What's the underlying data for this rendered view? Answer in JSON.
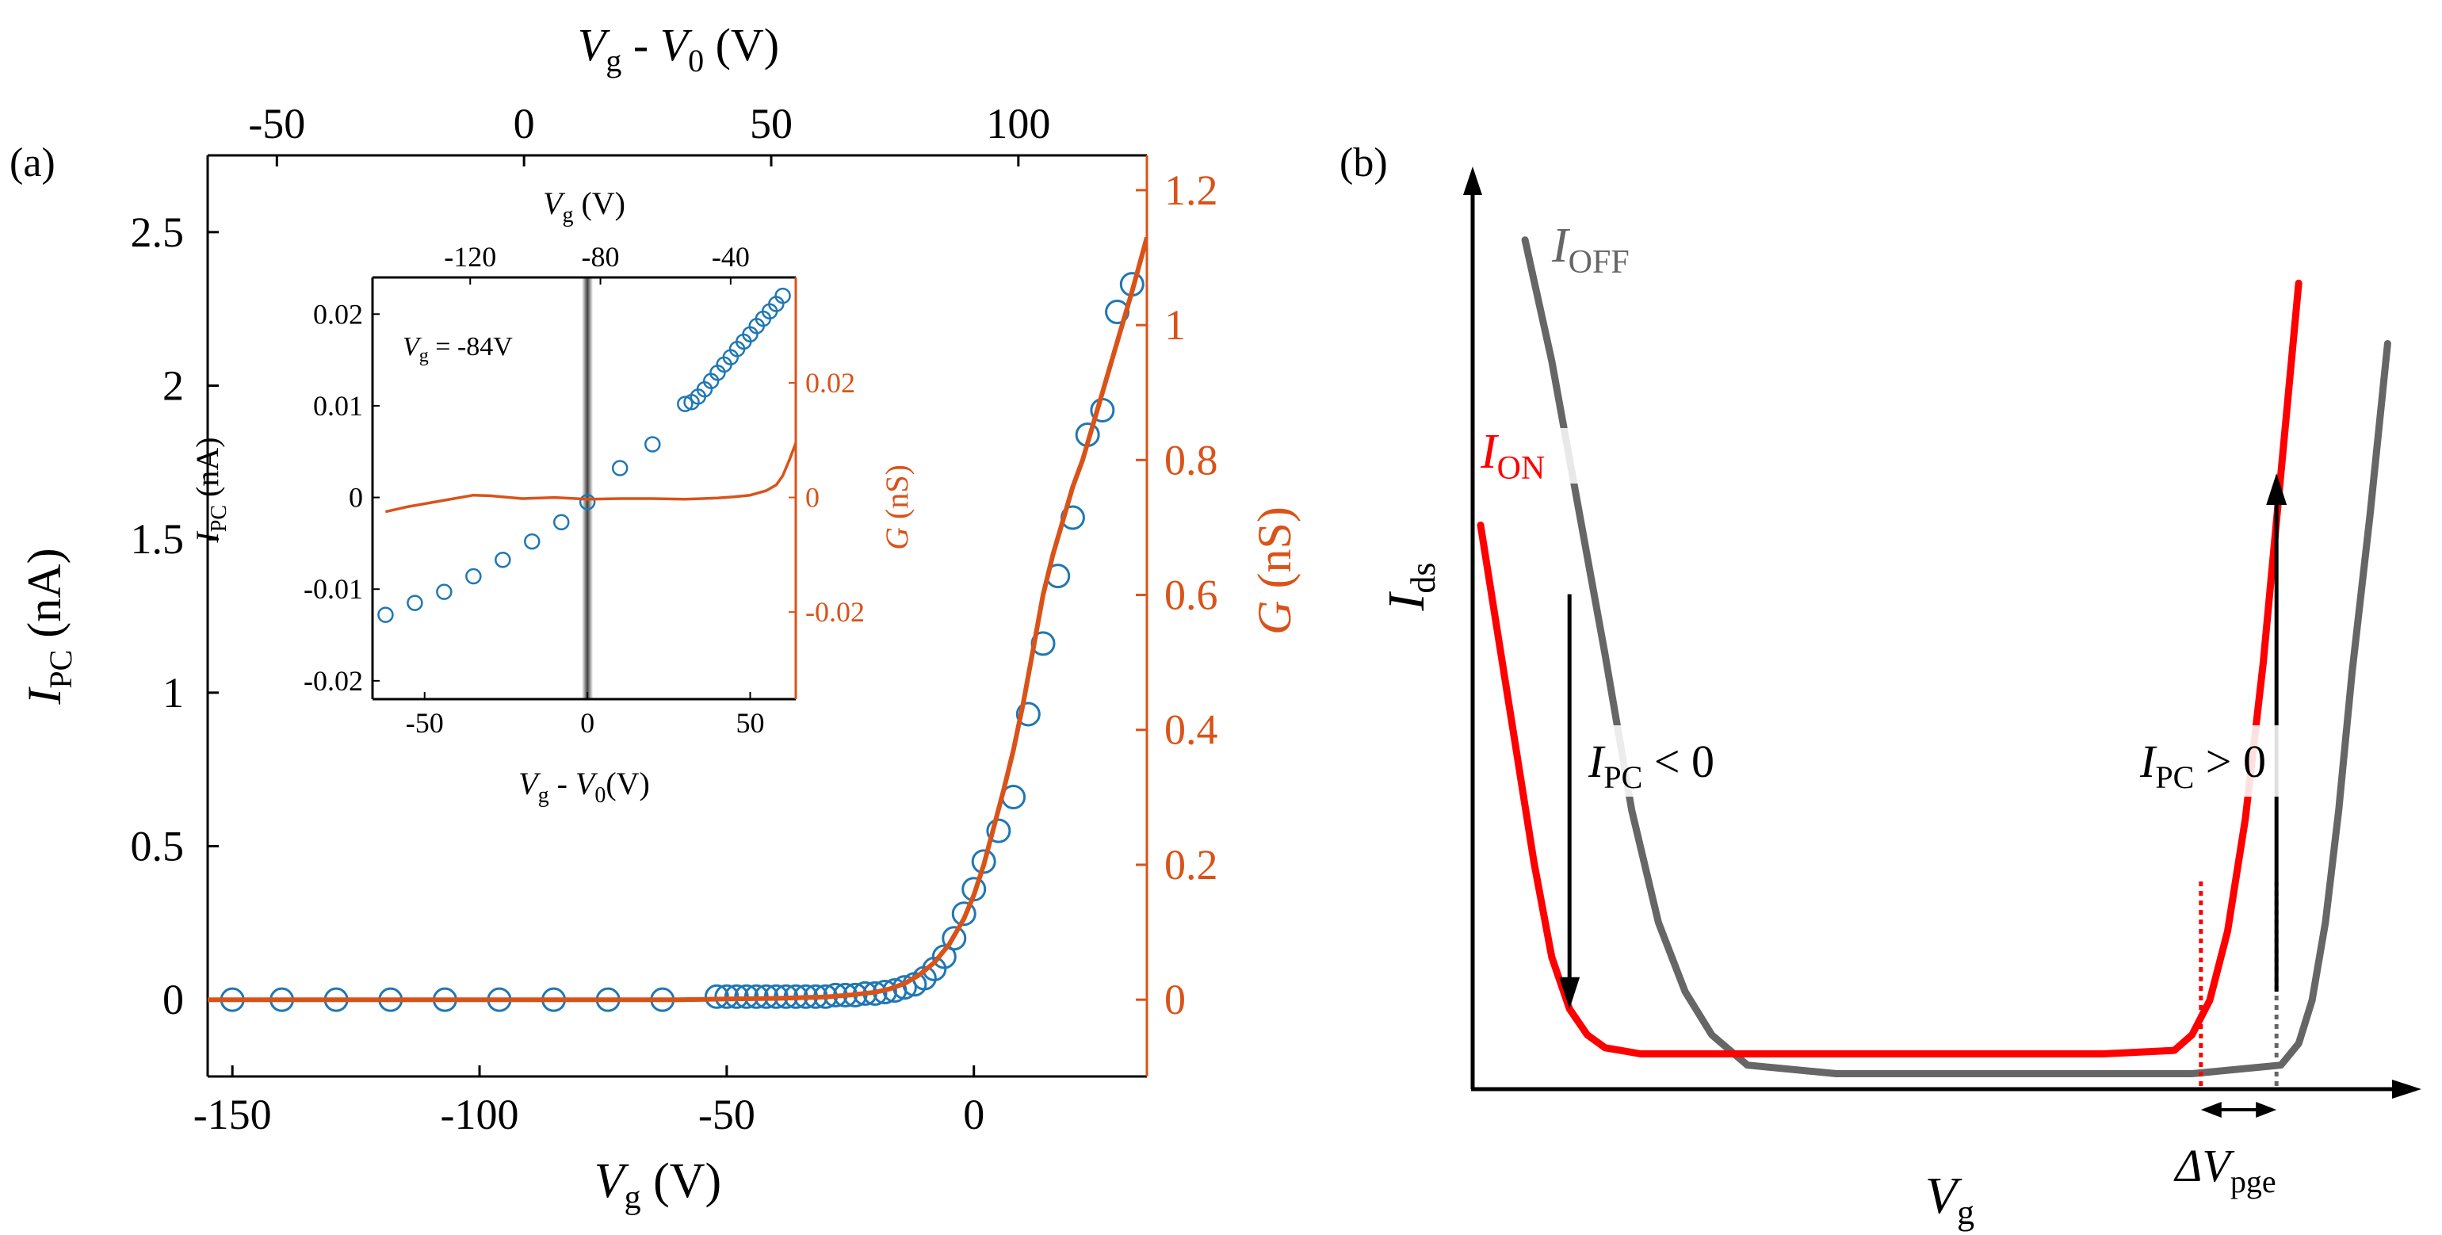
{
  "colors": {
    "blue": "#1f77b4",
    "orange": "#d95319",
    "red": "#ff0000",
    "gray": "#666666",
    "black": "#000000"
  },
  "chart_data": [
    {
      "id": "panel-a",
      "type": "scatter",
      "panel_label": "(a)",
      "xlabel": "V_g (V)",
      "xlabel_parts": [
        "V",
        "g",
        " (V)"
      ],
      "top_xlabel_parts": [
        "V",
        "g",
        " - ",
        "V",
        "0",
        " (V)"
      ],
      "ylabel_left_parts": [
        "I",
        "PC",
        " (nA)"
      ],
      "ylabel_right_parts": [
        "G",
        " (nS)"
      ],
      "xlim": [
        -155,
        35
      ],
      "ylim_left": [
        -0.25,
        2.75
      ],
      "ylim_right": [
        -0.1138,
        1.2516
      ],
      "top_xlim": [
        -64,
        126
      ],
      "x_ticks": [
        -150,
        -100,
        -50,
        0
      ],
      "x_tick_labels": [
        "-150",
        "-100",
        "-50",
        "0"
      ],
      "top_ticks": [
        -50,
        0,
        50,
        100
      ],
      "top_tick_labels": [
        "-50",
        "0",
        "50",
        "100"
      ],
      "y_left_ticks": [
        0,
        0.5,
        1,
        1.5,
        2,
        2.5
      ],
      "y_left_tick_labels": [
        "0",
        "0.5",
        "1",
        "1.5",
        "2",
        "2.5"
      ],
      "y_right_ticks": [
        0,
        0.2,
        0.4,
        0.6,
        0.8,
        1,
        1.2
      ],
      "y_right_tick_labels": [
        "0",
        "0.2",
        "0.4",
        "0.6",
        "0.8",
        "1",
        "1.2"
      ],
      "series": [
        {
          "name": "I_PC",
          "axis": "left",
          "style": "markers",
          "color": "#1f77b4",
          "x": [
            -150,
            -140,
            -129,
            -118,
            -107,
            -96,
            -85,
            -74,
            -63,
            -52,
            -50,
            -48,
            -46,
            -44,
            -42,
            -40,
            -38,
            -36,
            -34,
            -32,
            -30,
            -28,
            -26,
            -24,
            -22,
            -20,
            -18,
            -16,
            -14,
            -12,
            -10,
            -8,
            -6,
            -4,
            -2,
            0,
            2,
            5,
            8,
            11,
            14,
            17,
            20,
            23,
            26,
            29,
            32
          ],
          "y": [
            0,
            0,
            0,
            0,
            0,
            0,
            0,
            0,
            0,
            0.01,
            0.01,
            0.01,
            0.01,
            0.01,
            0.01,
            0.01,
            0.01,
            0.01,
            0.01,
            0.01,
            0.01,
            0.015,
            0.015,
            0.015,
            0.02,
            0.02,
            0.025,
            0.03,
            0.04,
            0.05,
            0.07,
            0.1,
            0.14,
            0.2,
            0.28,
            0.36,
            0.45,
            0.55,
            0.66,
            0.93,
            1.16,
            1.38,
            1.57,
            1.84,
            1.92,
            2.24,
            2.33
          ]
        },
        {
          "name": "G",
          "axis": "right",
          "style": "line",
          "color": "#d95319",
          "x": [
            -155,
            -140,
            -120,
            -100,
            -80,
            -60,
            -50,
            -40,
            -30,
            -25,
            -20,
            -17,
            -14,
            -11,
            -8,
            -5,
            -2,
            0,
            2,
            4,
            6,
            8,
            10,
            12,
            14,
            16,
            18,
            20,
            22,
            24,
            26,
            28,
            30,
            32,
            35
          ],
          "y": [
            0,
            0,
            0,
            0,
            0,
            0,
            0.001,
            0.002,
            0.004,
            0.007,
            0.011,
            0.016,
            0.024,
            0.037,
            0.055,
            0.082,
            0.12,
            0.155,
            0.2,
            0.255,
            0.31,
            0.37,
            0.44,
            0.52,
            0.6,
            0.66,
            0.71,
            0.76,
            0.8,
            0.85,
            0.9,
            0.95,
            1.0,
            1.05,
            1.13
          ]
        }
      ],
      "inset": {
        "xlabel_parts": [
          "V",
          "g",
          " - ",
          "V",
          "0",
          "(V)"
        ],
        "top_xlabel_parts": [
          "V",
          "g",
          " (V)"
        ],
        "ylabel_left_parts": [
          "I",
          "PC",
          " (nA)"
        ],
        "ylabel_right_parts": [
          "G",
          " (nS)"
        ],
        "annotation_parts": [
          "V",
          "g",
          " = -84V"
        ],
        "xlim": [
          -66,
          64
        ],
        "ylim_left": [
          -0.022,
          0.024
        ],
        "ylim_right": [
          -0.0352,
          0.0384
        ],
        "top_xlim": [
          -150,
          -20
        ],
        "x_ticks": [
          -50,
          0,
          50
        ],
        "x_tick_labels": [
          "-50",
          "0",
          "50"
        ],
        "top_ticks": [
          -120,
          -80,
          -40
        ],
        "top_tick_labels": [
          "-120",
          "-80",
          "-40"
        ],
        "y_left_ticks": [
          -0.02,
          -0.01,
          0,
          0.01,
          0.02
        ],
        "y_left_tick_labels": [
          "-0.02",
          "-0.01",
          "0",
          "0.01",
          "0.02"
        ],
        "y_right_ticks": [
          -0.02,
          0,
          0.02
        ],
        "y_right_tick_labels": [
          "-0.02",
          "0",
          "0.02"
        ],
        "vertical_marker_x": 0,
        "series": [
          {
            "name": "I_PC",
            "axis": "left",
            "style": "markers",
            "color": "#1f77b4",
            "x": [
              -62,
              -53,
              -44,
              -35,
              -26,
              -17,
              -8,
              0,
              10,
              20,
              30,
              32,
              34,
              36,
              38,
              40,
              42,
              44,
              46,
              48,
              50,
              52,
              54,
              56,
              58,
              60
            ],
            "y": [
              -0.0128,
              -0.0115,
              -0.0103,
              -0.0086,
              -0.0068,
              -0.0048,
              -0.0027,
              -0.0005,
              0.0032,
              0.0058,
              0.0102,
              0.0104,
              0.011,
              0.0118,
              0.0127,
              0.0136,
              0.0145,
              0.0153,
              0.0162,
              0.017,
              0.0178,
              0.0187,
              0.0195,
              0.0203,
              0.0211,
              0.022
            ]
          },
          {
            "name": "G",
            "axis": "right",
            "style": "line",
            "color": "#d95319",
            "x": [
              -62,
              -55,
              -45,
              -35,
              -30,
              -20,
              -10,
              0,
              10,
              20,
              30,
              40,
              45,
              50,
              55,
              58,
              60,
              62,
              64
            ],
            "y": [
              -0.0025,
              -0.0016,
              -0.0006,
              0.0004,
              0.0003,
              -0.0002,
              0.0,
              -0.0003,
              -0.0002,
              -0.0002,
              -0.0003,
              -0.0001,
              0.0001,
              0.0004,
              0.0012,
              0.0022,
              0.0038,
              0.0065,
              0.0095
            ]
          }
        ]
      }
    },
    {
      "id": "panel-b",
      "type": "line",
      "schematic": true,
      "panel_label": "(b)",
      "xlabel_parts": [
        "V",
        "g"
      ],
      "ylabel_parts": [
        "I",
        "ds"
      ],
      "xlim": [
        0,
        100
      ],
      "ylim": [
        0,
        100
      ],
      "series": [
        {
          "name": "I_OFF",
          "label_parts": [
            "I",
            "OFF"
          ],
          "color": "#666666",
          "x": [
            5,
            8,
            11,
            14,
            17,
            20,
            23,
            26,
            30,
            40,
            60,
            80,
            90,
            92,
            93.5,
            95,
            96.5,
            98,
            100,
            102
          ],
          "y": [
            97,
            83,
            66,
            49,
            31,
            18,
            10,
            5,
            1.5,
            0.5,
            0.5,
            0.5,
            1.5,
            4,
            9,
            18,
            31,
            47,
            65,
            85
          ]
        },
        {
          "name": "I_ON",
          "label_parts": [
            "I",
            "ON"
          ],
          "color": "#ff0000",
          "x": [
            0,
            2,
            4,
            6,
            8,
            10,
            12,
            14,
            18,
            30,
            50,
            70,
            78,
            80,
            82,
            84,
            86,
            88,
            90,
            92
          ],
          "y": [
            64,
            51,
            38,
            25,
            14,
            8,
            5,
            3.5,
            2.8,
            2.8,
            2.8,
            2.8,
            3.2,
            5,
            9,
            17,
            30,
            48,
            70,
            92
          ]
        }
      ],
      "annotations": [
        {
          "parts": [
            "I",
            "PC",
            " < 0"
          ]
        },
        {
          "parts": [
            "I",
            "PC",
            " > 0"
          ]
        },
        {
          "parts": [
            "ΔV",
            "pge"
          ]
        }
      ],
      "arrows": [
        {
          "name": "ipc-negative-arrow",
          "x": 10,
          "from_y": 56,
          "to_y": 8
        },
        {
          "name": "ipc-positive-arrow",
          "x": 89.5,
          "from_y": 10,
          "to_y": 70
        }
      ],
      "dotted_markers": [
        {
          "name": "red-dotted-marker",
          "x": 81,
          "color": "#ff0000"
        },
        {
          "name": "gray-dotted-marker",
          "x": 89.5,
          "color": "#666666"
        }
      ],
      "span_arrow": {
        "from_x": 81,
        "to_x": 89.5
      }
    }
  ]
}
